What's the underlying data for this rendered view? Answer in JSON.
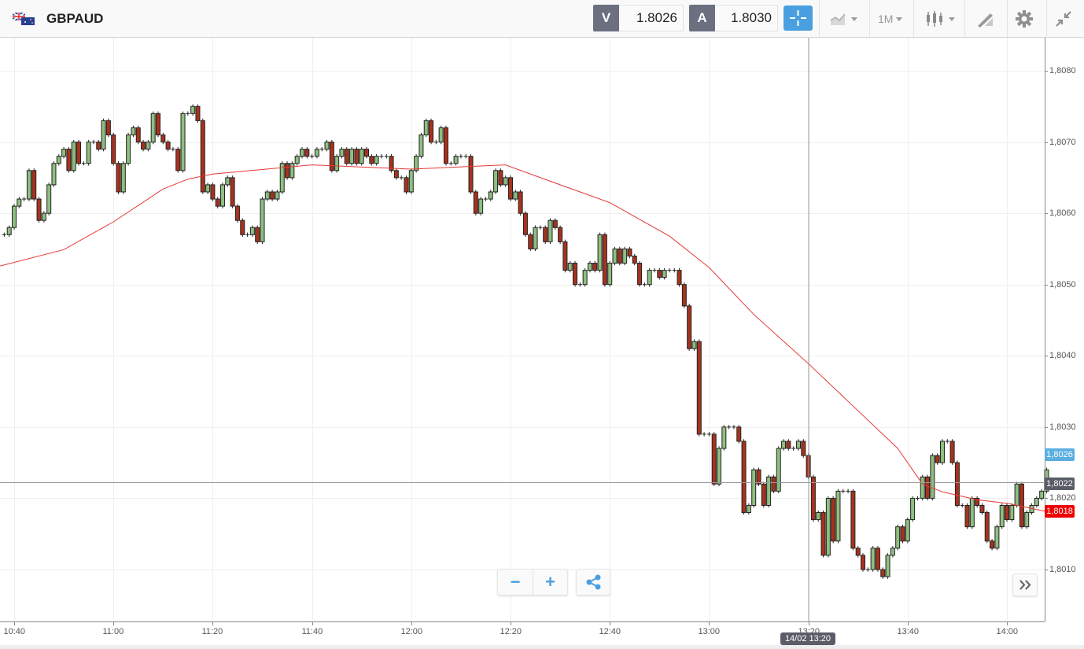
{
  "header": {
    "symbol": "GBPAUD",
    "flag_icon": "gb-au-flag-icon",
    "bid_label": "V",
    "bid_value": "1.8026",
    "ask_label": "A",
    "ask_value": "1.8030",
    "timeframe": "1M",
    "tools": [
      "crosshair-icon",
      "chart-type-icon",
      "timeframe-dropdown",
      "candlestick-icon",
      "drawing-icon",
      "gear-icon",
      "collapse-icon"
    ],
    "accent_color": "#4a9fe0"
  },
  "controls": {
    "zoom_out": "−",
    "zoom_in": "+",
    "share_icon": "share-icon",
    "scroll_icon": "double-chevron-right-icon"
  },
  "crosshair": {
    "time_label": "14/02 13:20",
    "price": "1,8022"
  },
  "price_tags": {
    "bid": {
      "text": "1,8026",
      "color": "#5aafe0"
    },
    "last": {
      "text": "1,8022",
      "color": "#5a5d68"
    },
    "ma": {
      "text": "1,8018",
      "color": "#ee0000"
    }
  },
  "chart_data": {
    "type": "candlestick",
    "title": "",
    "interval_minutes": 1,
    "start_time": "10:38",
    "ylim": [
      1.8003,
      1.8087
    ],
    "grid": true,
    "y_ticks": [
      "1,8080",
      "1,8070",
      "1,8060",
      "1,8050",
      "1,8040",
      "1,8030",
      "1,8020",
      "1,8010"
    ],
    "y_tick_values": [
      1.808,
      1.807,
      1.806,
      1.805,
      1.804,
      1.803,
      1.802,
      1.801
    ],
    "x_ticks": [
      "10:40",
      "11:00",
      "11:20",
      "11:40",
      "12:00",
      "12:20",
      "12:40",
      "13:00",
      "13:20",
      "13:40",
      "14:00"
    ],
    "colors": {
      "up": "#8fbf7f",
      "down": "#a8321e",
      "ma": "#e53935"
    },
    "close": [
      1.8057,
      1.8058,
      1.8061,
      1.8062,
      1.8062,
      1.8066,
      1.8062,
      1.8059,
      1.806,
      1.8064,
      1.8067,
      1.8068,
      1.8069,
      1.8066,
      1.807,
      1.8067,
      1.8067,
      1.807,
      1.807,
      1.8069,
      1.8073,
      1.8071,
      1.8067,
      1.8063,
      1.8067,
      1.8071,
      1.8072,
      1.807,
      1.8069,
      1.807,
      1.8074,
      1.8071,
      1.807,
      1.8069,
      1.8069,
      1.8066,
      1.8074,
      1.8074,
      1.8075,
      1.8073,
      1.8063,
      1.8064,
      1.8062,
      1.8061,
      1.8064,
      1.8065,
      1.8061,
      1.8059,
      1.8057,
      1.8057,
      1.8058,
      1.8056,
      1.8062,
      1.8063,
      1.8062,
      1.8063,
      1.8067,
      1.8065,
      1.8067,
      1.8068,
      1.8069,
      1.8068,
      1.8068,
      1.8069,
      1.8069,
      1.807,
      1.8066,
      1.8068,
      1.8069,
      1.8067,
      1.8069,
      1.8067,
      1.8069,
      1.8068,
      1.8067,
      1.8068,
      1.8068,
      1.8068,
      1.8066,
      1.8065,
      1.8065,
      1.8063,
      1.8066,
      1.8068,
      1.8071,
      1.8073,
      1.807,
      1.807,
      1.8072,
      1.8067,
      1.8067,
      1.8068,
      1.8068,
      1.8068,
      1.8063,
      1.806,
      1.8062,
      1.8062,
      1.8063,
      1.8066,
      1.8064,
      1.8065,
      1.8062,
      1.8063,
      1.806,
      1.8057,
      1.8055,
      1.8058,
      1.8058,
      1.8056,
      1.8059,
      1.8058,
      1.8056,
      1.8052,
      1.8053,
      1.805,
      1.805,
      1.8052,
      1.8053,
      1.8052,
      1.8057,
      1.805,
      1.8053,
      1.8055,
      1.8053,
      1.8055,
      1.8054,
      1.8053,
      1.805,
      1.805,
      1.8052,
      1.8052,
      1.8051,
      1.8052,
      1.8052,
      1.8052,
      1.805,
      1.8047,
      1.8041,
      1.8042,
      1.8029,
      1.8029,
      1.8029,
      1.8022,
      1.8027,
      1.803,
      1.803,
      1.803,
      1.8028,
      1.8018,
      1.8019,
      1.8024,
      1.8022,
      1.8019,
      1.8023,
      1.8021,
      1.8027,
      1.8028,
      1.8027,
      1.8027,
      1.8028,
      1.8026,
      1.8023,
      1.8017,
      1.8018,
      1.8012,
      1.802,
      1.8014,
      1.8021,
      1.8021,
      1.8021,
      1.8013,
      1.8012,
      1.801,
      1.801,
      1.8013,
      1.801,
      1.8009,
      1.8012,
      1.8013,
      1.8016,
      1.8014,
      1.8017,
      1.802,
      1.802,
      1.8023,
      1.802,
      1.8026,
      1.8025,
      1.8028,
      1.8028,
      1.8025,
      1.8019,
      1.8019,
      1.8016,
      1.802,
      1.8019,
      1.8018,
      1.8014,
      1.8013,
      1.8016,
      1.8019,
      1.8017,
      1.8019,
      1.8022,
      1.8016,
      1.8018,
      1.8019,
      1.802,
      1.8021,
      1.8024
    ],
    "moving_average": {
      "times": [
        "10:37",
        "10:50",
        "11:00",
        "11:10",
        "11:15",
        "11:20",
        "11:40",
        "12:00",
        "12:19",
        "12:28",
        "12:40",
        "12:52",
        "13:00",
        "13:09",
        "13:20",
        "13:28",
        "13:38",
        "13:43",
        "13:47",
        "13:54",
        "14:00",
        "14:08"
      ],
      "values": [
        1.80526,
        1.80549,
        1.80588,
        1.80634,
        1.80648,
        1.80655,
        1.80668,
        1.80662,
        1.80668,
        1.80645,
        1.80615,
        1.80568,
        1.80524,
        1.80458,
        1.80389,
        1.80336,
        1.8027,
        1.8022,
        1.80209,
        1.80198,
        1.80193,
        1.80182
      ]
    }
  }
}
